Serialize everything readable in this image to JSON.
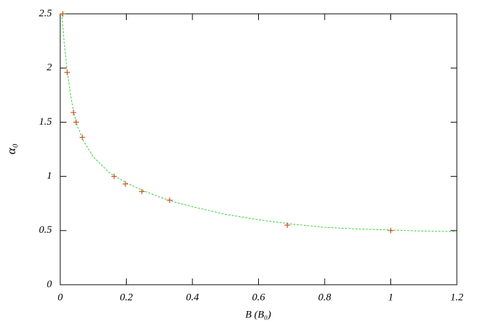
{
  "chart_data": {
    "type": "scatter",
    "xlabel": "B (B₀)",
    "ylabel": "α₀",
    "xlim": [
      0,
      1.2
    ],
    "xticks": [
      0,
      0.2,
      0.4,
      0.6,
      0.8,
      1,
      1.2
    ],
    "ylim": [
      0,
      2.5
    ],
    "yticks": [
      0,
      0.5,
      1,
      1.5,
      2,
      2.5
    ],
    "series": [
      {
        "type": "line",
        "color": "#33cc33",
        "dashed": true,
        "x": [
          0.005,
          0.01,
          0.02,
          0.03,
          0.04,
          0.05,
          0.07,
          0.1,
          0.15,
          0.2,
          0.25,
          0.3,
          0.35,
          0.4,
          0.5,
          0.6,
          0.7,
          0.8,
          0.9,
          1.0,
          1.1,
          1.2
        ],
        "values": [
          2.5,
          2.3,
          2.0,
          1.78,
          1.6,
          1.48,
          1.33,
          1.18,
          1.03,
          0.94,
          0.87,
          0.81,
          0.76,
          0.72,
          0.65,
          0.6,
          0.56,
          0.53,
          0.515,
          0.505,
          0.495,
          0.49
        ]
      },
      {
        "type": "scatter",
        "color": "#d0501e",
        "marker": "+",
        "x": [
          0.008,
          0.021,
          0.04,
          0.048,
          0.067,
          0.163,
          0.197,
          0.247,
          0.331,
          0.687,
          1.0
        ],
        "values": [
          2.5,
          1.96,
          1.59,
          1.5,
          1.36,
          1.0,
          0.93,
          0.86,
          0.78,
          0.55,
          0.5
        ]
      }
    ]
  }
}
